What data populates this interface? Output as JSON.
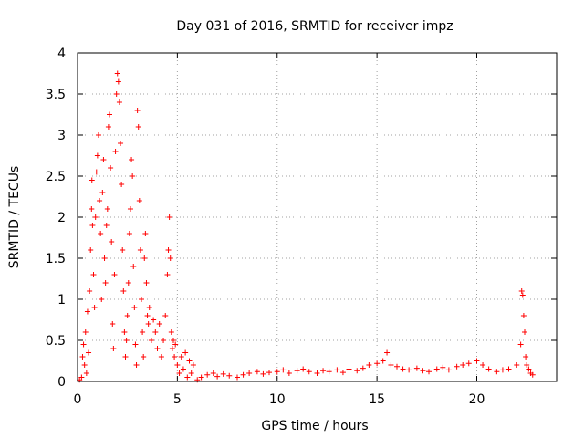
{
  "chart_data": {
    "type": "scatter",
    "title": "Day 031 of 2016, SRMTID for receiver impz",
    "xlabel": "GPS time / hours",
    "ylabel": "SRMTID / TECUs",
    "xlim": [
      0,
      24
    ],
    "ylim": [
      0,
      4
    ],
    "xticks": [
      0,
      5,
      10,
      15,
      20
    ],
    "yticks": [
      0,
      0.5,
      1,
      1.5,
      2,
      2.5,
      3,
      3.5,
      4
    ],
    "xtick_labels": [
      "0",
      "5",
      "10",
      "15",
      "20"
    ],
    "ytick_labels": [
      "0",
      "0.5",
      "1",
      "1.5",
      "2",
      "2.5",
      "3",
      "3.5",
      "4"
    ],
    "grid": true,
    "marker": "+",
    "color": "#ff0000",
    "series": [
      {
        "name": "SRMTID",
        "points": [
          [
            0.1,
            0.02
          ],
          [
            0.2,
            0.05
          ],
          [
            0.25,
            0.3
          ],
          [
            0.3,
            0.45
          ],
          [
            0.35,
            0.2
          ],
          [
            0.4,
            0.6
          ],
          [
            0.45,
            0.1
          ],
          [
            0.5,
            0.85
          ],
          [
            0.55,
            0.35
          ],
          [
            0.6,
            1.1
          ],
          [
            0.65,
            1.6
          ],
          [
            0.7,
            2.1
          ],
          [
            0.72,
            2.45
          ],
          [
            0.75,
            1.9
          ],
          [
            0.8,
            1.3
          ],
          [
            0.85,
            0.9
          ],
          [
            0.9,
            2.0
          ],
          [
            0.95,
            2.55
          ],
          [
            1.0,
            2.75
          ],
          [
            1.05,
            3.0
          ],
          [
            1.1,
            2.2
          ],
          [
            1.15,
            1.8
          ],
          [
            1.2,
            1.0
          ],
          [
            1.25,
            2.3
          ],
          [
            1.3,
            2.7
          ],
          [
            1.35,
            1.5
          ],
          [
            1.4,
            1.2
          ],
          [
            1.45,
            1.9
          ],
          [
            1.5,
            2.1
          ],
          [
            1.55,
            3.1
          ],
          [
            1.6,
            3.25
          ],
          [
            1.65,
            2.6
          ],
          [
            1.7,
            1.7
          ],
          [
            1.75,
            0.7
          ],
          [
            1.8,
            0.4
          ],
          [
            1.85,
            1.3
          ],
          [
            1.9,
            2.8
          ],
          [
            1.95,
            3.5
          ],
          [
            2.0,
            3.75
          ],
          [
            2.05,
            3.65
          ],
          [
            2.1,
            3.4
          ],
          [
            2.15,
            2.9
          ],
          [
            2.2,
            2.4
          ],
          [
            2.25,
            1.6
          ],
          [
            2.3,
            1.1
          ],
          [
            2.35,
            0.6
          ],
          [
            2.4,
            0.3
          ],
          [
            2.45,
            0.5
          ],
          [
            2.5,
            0.8
          ],
          [
            2.55,
            1.2
          ],
          [
            2.6,
            1.8
          ],
          [
            2.65,
            2.1
          ],
          [
            2.7,
            2.7
          ],
          [
            2.75,
            2.5
          ],
          [
            2.8,
            1.4
          ],
          [
            2.85,
            0.9
          ],
          [
            2.9,
            0.45
          ],
          [
            2.95,
            0.2
          ],
          [
            3.0,
            3.3
          ],
          [
            3.05,
            3.1
          ],
          [
            3.1,
            2.2
          ],
          [
            3.15,
            1.6
          ],
          [
            3.2,
            1.0
          ],
          [
            3.25,
            0.6
          ],
          [
            3.3,
            0.3
          ],
          [
            3.35,
            1.5
          ],
          [
            3.4,
            1.8
          ],
          [
            3.45,
            1.2
          ],
          [
            3.5,
            0.8
          ],
          [
            3.55,
            0.7
          ],
          [
            3.6,
            0.9
          ],
          [
            3.7,
            0.5
          ],
          [
            3.8,
            0.75
          ],
          [
            3.9,
            0.6
          ],
          [
            4.0,
            0.4
          ],
          [
            4.1,
            0.7
          ],
          [
            4.2,
            0.3
          ],
          [
            4.3,
            0.5
          ],
          [
            4.4,
            0.8
          ],
          [
            4.5,
            1.3
          ],
          [
            4.55,
            1.6
          ],
          [
            4.6,
            2.0
          ],
          [
            4.65,
            1.5
          ],
          [
            4.7,
            0.6
          ],
          [
            4.75,
            0.4
          ],
          [
            4.8,
            0.5
          ],
          [
            4.85,
            0.3
          ],
          [
            4.9,
            0.45
          ],
          [
            5.0,
            0.2
          ],
          [
            5.1,
            0.1
          ],
          [
            5.2,
            0.3
          ],
          [
            5.3,
            0.15
          ],
          [
            5.4,
            0.35
          ],
          [
            5.5,
            0.05
          ],
          [
            5.6,
            0.25
          ],
          [
            5.7,
            0.1
          ],
          [
            5.8,
            0.2
          ],
          [
            6.0,
            0.02
          ],
          [
            6.2,
            0.05
          ],
          [
            6.5,
            0.08
          ],
          [
            6.8,
            0.1
          ],
          [
            7.0,
            0.06
          ],
          [
            7.3,
            0.09
          ],
          [
            7.6,
            0.07
          ],
          [
            8.0,
            0.05
          ],
          [
            8.3,
            0.08
          ],
          [
            8.6,
            0.1
          ],
          [
            9.0,
            0.12
          ],
          [
            9.3,
            0.09
          ],
          [
            9.6,
            0.11
          ],
          [
            10.0,
            0.12
          ],
          [
            10.3,
            0.14
          ],
          [
            10.6,
            0.1
          ],
          [
            11.0,
            0.13
          ],
          [
            11.3,
            0.15
          ],
          [
            11.6,
            0.12
          ],
          [
            12.0,
            0.1
          ],
          [
            12.3,
            0.13
          ],
          [
            12.6,
            0.12
          ],
          [
            13.0,
            0.14
          ],
          [
            13.3,
            0.11
          ],
          [
            13.6,
            0.15
          ],
          [
            14.0,
            0.13
          ],
          [
            14.3,
            0.16
          ],
          [
            14.6,
            0.2
          ],
          [
            15.0,
            0.22
          ],
          [
            15.3,
            0.25
          ],
          [
            15.5,
            0.35
          ],
          [
            15.7,
            0.2
          ],
          [
            16.0,
            0.18
          ],
          [
            16.3,
            0.15
          ],
          [
            16.6,
            0.14
          ],
          [
            17.0,
            0.16
          ],
          [
            17.3,
            0.13
          ],
          [
            17.6,
            0.12
          ],
          [
            18.0,
            0.15
          ],
          [
            18.3,
            0.17
          ],
          [
            18.6,
            0.14
          ],
          [
            19.0,
            0.18
          ],
          [
            19.3,
            0.2
          ],
          [
            19.6,
            0.22
          ],
          [
            20.0,
            0.25
          ],
          [
            20.3,
            0.2
          ],
          [
            20.6,
            0.15
          ],
          [
            21.0,
            0.12
          ],
          [
            21.3,
            0.14
          ],
          [
            21.6,
            0.15
          ],
          [
            22.0,
            0.2
          ],
          [
            22.2,
            0.45
          ],
          [
            22.25,
            1.1
          ],
          [
            22.3,
            1.05
          ],
          [
            22.35,
            0.8
          ],
          [
            22.4,
            0.6
          ],
          [
            22.45,
            0.3
          ],
          [
            22.5,
            0.2
          ],
          [
            22.6,
            0.15
          ],
          [
            22.7,
            0.1
          ],
          [
            22.8,
            0.08
          ]
        ]
      }
    ]
  }
}
